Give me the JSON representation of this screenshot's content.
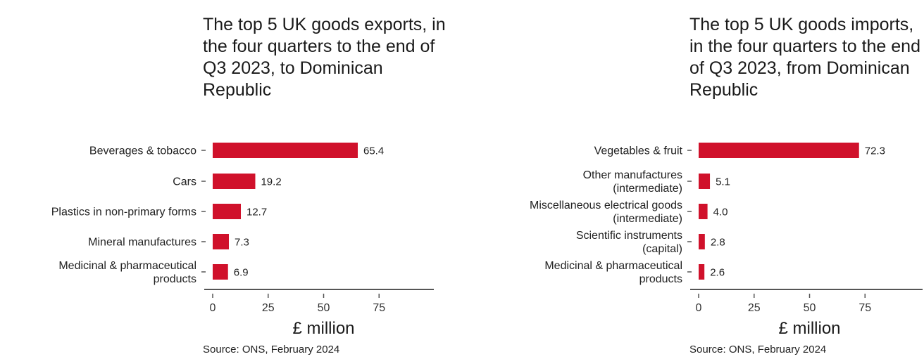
{
  "colors": {
    "bar": "#d0112b",
    "axis": "#555555",
    "text": "#222222"
  },
  "chart_data": [
    {
      "type": "bar",
      "orientation": "horizontal",
      "title": "The top 5 UK goods exports, in the four quarters to the end of Q3 2023, to Dominican Republic",
      "categories": [
        "Beverages & tobacco",
        "Cars",
        "Plastics in non-primary forms",
        "Mineral manufactures",
        "Medicinal & pharmaceutical\nproducts"
      ],
      "values": [
        65.4,
        19.2,
        12.7,
        7.3,
        6.9
      ],
      "value_labels": [
        "65.4",
        "19.2",
        "12.7",
        "7.3",
        "6.9"
      ],
      "xlabel": "£ million",
      "xlim": [
        0,
        100
      ],
      "xticks": [
        0,
        25,
        50,
        75
      ],
      "grid": false,
      "source": "Source: ONS, February 2024"
    },
    {
      "type": "bar",
      "orientation": "horizontal",
      "title": "The top 5 UK goods imports, in the four quarters to the end of Q3 2023, from Dominican Republic",
      "categories": [
        "Vegetables & fruit",
        "Other manufactures\n(intermediate)",
        "Miscellaneous electrical goods\n(intermediate)",
        "Scientific instruments\n(capital)",
        "Medicinal & pharmaceutical\nproducts"
      ],
      "values": [
        72.3,
        5.1,
        4.0,
        2.8,
        2.6
      ],
      "value_labels": [
        "72.3",
        "5.1",
        "4.0",
        "2.8",
        "2.6"
      ],
      "xlabel": "£ million",
      "xlim": [
        0,
        100
      ],
      "xticks": [
        0,
        25,
        50,
        75
      ],
      "grid": false,
      "source": "Source: ONS, February 2024"
    }
  ]
}
